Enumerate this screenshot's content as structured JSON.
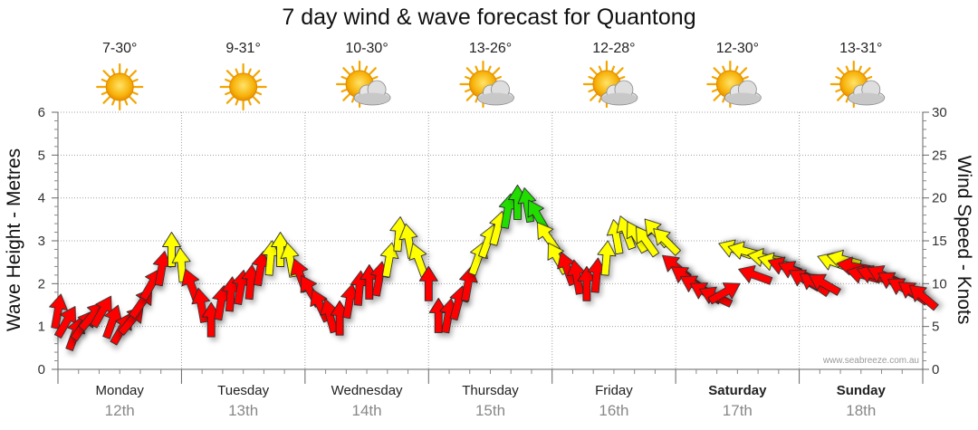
{
  "chart_data": {
    "type": "line",
    "title": "7 day wind & wave forecast for Quantong",
    "ylabel_left": "Wave Height - Metres",
    "ylabel_right": "Wind Speed - Knots",
    "ylim_left": [
      0,
      6
    ],
    "ylim_right": [
      0,
      30
    ],
    "yticks_left": [
      "0",
      "1",
      "2",
      "3",
      "4",
      "5",
      "6"
    ],
    "yticks_right": [
      "0",
      "5",
      "10",
      "15",
      "20",
      "25",
      "30"
    ],
    "credit": "www.seabreeze.com.au",
    "days": [
      {
        "day": "Monday",
        "date": "12th",
        "temps": "7-30°",
        "icon": "sunny-icon",
        "bold": false
      },
      {
        "day": "Tuesday",
        "date": "13th",
        "temps": "9-31°",
        "icon": "sunny-icon",
        "bold": false
      },
      {
        "day": "Wednesday",
        "date": "14th",
        "temps": "10-30°",
        "icon": "partly-cloudy-icon",
        "bold": false
      },
      {
        "day": "Thursday",
        "date": "15th",
        "temps": "13-26°",
        "icon": "partly-cloudy-icon",
        "bold": false
      },
      {
        "day": "Friday",
        "date": "16th",
        "temps": "12-28°",
        "icon": "partly-cloudy-icon",
        "bold": false
      },
      {
        "day": "Saturday",
        "date": "17th",
        "temps": "12-30°",
        "icon": "partly-cloudy-icon",
        "bold": true
      },
      {
        "day": "Sunday",
        "date": "18th",
        "temps": "13-31°",
        "icon": "partly-cloudy-icon",
        "bold": true
      }
    ],
    "wind_series": {
      "name": "Wind speed (knots) and direction (arrow heading, degrees clockwise from up)",
      "points": [
        {
          "t": 0.0,
          "knots": 6.8,
          "dir": 10
        },
        {
          "t": 0.07,
          "knots": 5.6,
          "dir": 30
        },
        {
          "t": 0.14,
          "knots": 4.2,
          "dir": 20
        },
        {
          "t": 0.21,
          "knots": 5.2,
          "dir": 35
        },
        {
          "t": 0.28,
          "knots": 6.3,
          "dir": 40
        },
        {
          "t": 0.36,
          "knots": 6.8,
          "dir": 30
        },
        {
          "t": 0.44,
          "knots": 5.6,
          "dir": 20
        },
        {
          "t": 0.52,
          "knots": 4.8,
          "dir": 30
        },
        {
          "t": 0.6,
          "knots": 5.8,
          "dir": 40
        },
        {
          "t": 0.68,
          "knots": 7.8,
          "dir": 35
        },
        {
          "t": 0.76,
          "knots": 10.0,
          "dir": 30
        },
        {
          "t": 0.84,
          "knots": 11.8,
          "dir": 10
        },
        {
          "t": 0.92,
          "knots": 14.0,
          "dir": 0
        },
        {
          "t": 1.0,
          "knots": 12.2,
          "dir": -5
        },
        {
          "t": 1.08,
          "knots": 9.8,
          "dir": -20
        },
        {
          "t": 1.16,
          "knots": 7.5,
          "dir": -10
        },
        {
          "t": 1.24,
          "knots": 5.8,
          "dir": 0
        },
        {
          "t": 1.32,
          "knots": 7.8,
          "dir": 10
        },
        {
          "t": 1.4,
          "knots": 8.8,
          "dir": 5
        },
        {
          "t": 1.48,
          "knots": 9.6,
          "dir": 10
        },
        {
          "t": 1.56,
          "knots": 10.2,
          "dir": 5
        },
        {
          "t": 1.64,
          "knots": 11.8,
          "dir": 10
        },
        {
          "t": 1.72,
          "knots": 13.0,
          "dir": 5
        },
        {
          "t": 1.8,
          "knots": 14.0,
          "dir": 0
        },
        {
          "t": 1.88,
          "knots": 12.8,
          "dir": -10
        },
        {
          "t": 1.96,
          "knots": 11.0,
          "dir": -20
        },
        {
          "t": 2.04,
          "knots": 9.2,
          "dir": -30
        },
        {
          "t": 2.12,
          "knots": 7.5,
          "dir": -25
        },
        {
          "t": 2.2,
          "knots": 6.3,
          "dir": -15
        },
        {
          "t": 2.28,
          "knots": 6.0,
          "dir": 0
        },
        {
          "t": 2.36,
          "knots": 8.0,
          "dir": 10
        },
        {
          "t": 2.44,
          "knots": 9.5,
          "dir": 5
        },
        {
          "t": 2.52,
          "knots": 10.2,
          "dir": 0
        },
        {
          "t": 2.6,
          "knots": 10.6,
          "dir": 10
        },
        {
          "t": 2.68,
          "knots": 12.8,
          "dir": 10
        },
        {
          "t": 2.76,
          "knots": 15.8,
          "dir": 5
        },
        {
          "t": 2.84,
          "knots": 15.0,
          "dir": -10
        },
        {
          "t": 2.92,
          "knots": 12.8,
          "dir": -20
        },
        {
          "t": 3.0,
          "knots": 10.0,
          "dir": 0
        },
        {
          "t": 3.08,
          "knots": 6.3,
          "dir": 0
        },
        {
          "t": 3.16,
          "knots": 6.3,
          "dir": 10
        },
        {
          "t": 3.24,
          "knots": 7.8,
          "dir": 15
        },
        {
          "t": 3.32,
          "knots": 10.0,
          "dir": 10
        },
        {
          "t": 3.4,
          "knots": 13.0,
          "dir": 20
        },
        {
          "t": 3.48,
          "knots": 15.0,
          "dir": 20
        },
        {
          "t": 3.56,
          "knots": 16.5,
          "dir": 15
        },
        {
          "t": 3.64,
          "knots": 18.5,
          "dir": 10
        },
        {
          "t": 3.72,
          "knots": 19.5,
          "dir": 0
        },
        {
          "t": 3.8,
          "knots": 19.2,
          "dir": -10
        },
        {
          "t": 3.88,
          "knots": 18.0,
          "dir": -30
        },
        {
          "t": 3.96,
          "knots": 15.5,
          "dir": -35
        },
        {
          "t": 4.04,
          "knots": 13.0,
          "dir": -30
        },
        {
          "t": 4.12,
          "knots": 11.8,
          "dir": -20
        },
        {
          "t": 4.2,
          "knots": 10.8,
          "dir": -10
        },
        {
          "t": 4.28,
          "knots": 10.0,
          "dir": 0
        },
        {
          "t": 4.36,
          "knots": 11.0,
          "dir": 5
        },
        {
          "t": 4.44,
          "knots": 13.0,
          "dir": 5
        },
        {
          "t": 4.52,
          "knots": 15.5,
          "dir": -10
        },
        {
          "t": 4.6,
          "knots": 16.0,
          "dir": -20
        },
        {
          "t": 4.68,
          "knots": 15.5,
          "dir": -30
        },
        {
          "t": 4.76,
          "knots": 15.0,
          "dir": -35
        },
        {
          "t": 4.84,
          "knots": 16.0,
          "dir": -40
        },
        {
          "t": 4.92,
          "knots": 15.0,
          "dir": -45
        },
        {
          "t": 5.0,
          "knots": 12.0,
          "dir": -50
        },
        {
          "t": 5.08,
          "knots": 10.8,
          "dir": -55
        },
        {
          "t": 5.16,
          "knots": 9.8,
          "dir": -60
        },
        {
          "t": 5.24,
          "knots": 9.0,
          "dir": -60
        },
        {
          "t": 5.32,
          "knots": 8.5,
          "dir": -65
        },
        {
          "t": 5.4,
          "knots": 9.0,
          "dir": 60
        },
        {
          "t": 5.48,
          "knots": 14.0,
          "dir": -70
        },
        {
          "t": 5.56,
          "knots": 13.8,
          "dir": -75
        },
        {
          "t": 5.64,
          "knots": 11.0,
          "dir": -70
        },
        {
          "t": 5.72,
          "knots": 13.0,
          "dir": -80
        },
        {
          "t": 5.8,
          "knots": 12.5,
          "dir": -75
        },
        {
          "t": 5.88,
          "knots": 12.0,
          "dir": -70
        },
        {
          "t": 5.96,
          "knots": 11.5,
          "dir": -65
        },
        {
          "t": 6.04,
          "knots": 10.5,
          "dir": -60
        },
        {
          "t": 6.12,
          "knots": 10.0,
          "dir": -55
        },
        {
          "t": 6.2,
          "knots": 10.0,
          "dir": -60
        },
        {
          "t": 6.28,
          "knots": 12.5,
          "dir": -70
        },
        {
          "t": 6.36,
          "knots": 12.8,
          "dir": -75
        },
        {
          "t": 6.44,
          "knots": 12.0,
          "dir": -80
        },
        {
          "t": 6.52,
          "knots": 11.0,
          "dir": -75
        },
        {
          "t": 6.6,
          "knots": 11.0,
          "dir": -70
        },
        {
          "t": 6.68,
          "knots": 11.0,
          "dir": -65
        },
        {
          "t": 6.76,
          "knots": 10.2,
          "dir": -60
        },
        {
          "t": 6.84,
          "knots": 9.5,
          "dir": -60
        },
        {
          "t": 6.92,
          "knots": 9.0,
          "dir": -55
        },
        {
          "t": 7.0,
          "knots": 8.5,
          "dir": -50
        }
      ]
    },
    "wind_color_scale": [
      {
        "max_knots": 12,
        "color": "#ff0000"
      },
      {
        "max_knots": 17,
        "color": "#ffff00"
      },
      {
        "max_knots": 99,
        "color": "#22dd00"
      }
    ]
  }
}
